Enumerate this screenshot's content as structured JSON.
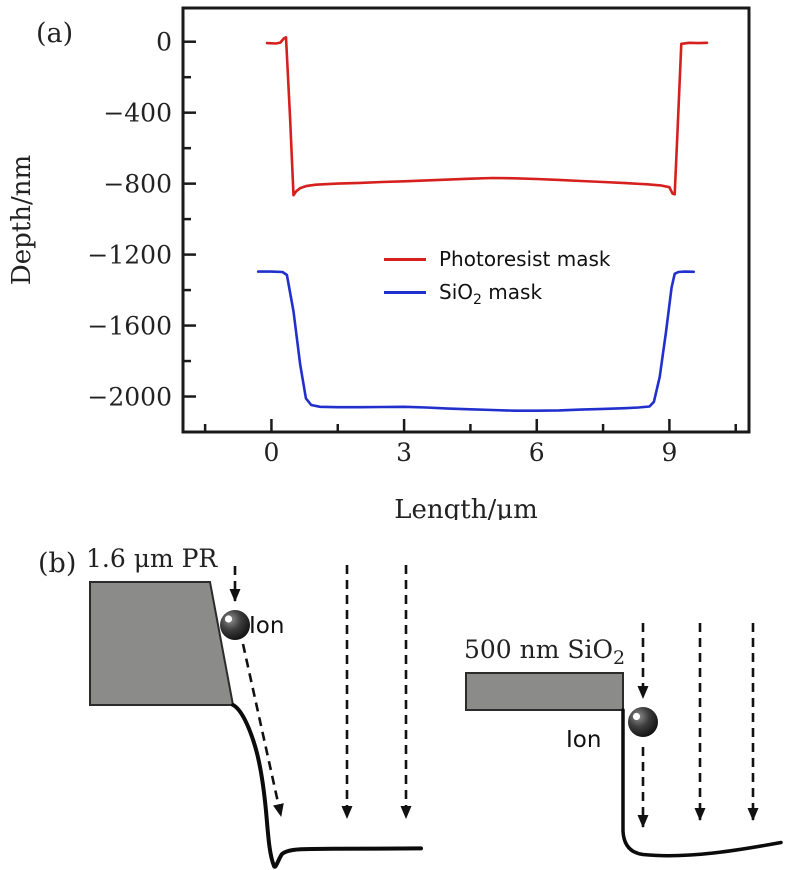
{
  "panel_a": {
    "tag": "(a)",
    "ylabel": "Depth/nm",
    "xlabel": "Length/μm",
    "legend": {
      "items": [
        {
          "label": "Photoresist mask",
          "color": "#d6201e"
        },
        {
          "label_pre": "SiO",
          "label_sub": "2",
          "label_post": " mask",
          "color": "#2130cc"
        }
      ]
    }
  },
  "chart_data": {
    "type": "line",
    "title": "",
    "xlabel": "Length/μm",
    "ylabel": "Depth/nm",
    "xlim": [
      -2.0,
      10.8
    ],
    "ylim": [
      190,
      -2200
    ],
    "grid": false,
    "legend_position": "center",
    "xticks": {
      "major": [
        0,
        3,
        6,
        9
      ],
      "minor": [
        -1.5,
        1.5,
        4.5,
        7.5,
        10.5
      ]
    },
    "yticks": {
      "major": [
        0,
        -400,
        -800,
        -1200,
        -1600,
        -2000
      ],
      "minor": [
        -200,
        -600,
        -1000,
        -1400,
        -1800
      ]
    },
    "series": [
      {
        "name": "Photoresist mask",
        "color": "#d6201e",
        "points": [
          [
            -0.1,
            -8
          ],
          [
            0.1,
            -10
          ],
          [
            0.2,
            -5
          ],
          [
            0.28,
            18
          ],
          [
            0.33,
            25
          ],
          [
            0.42,
            -420
          ],
          [
            0.5,
            -865
          ],
          [
            0.56,
            -843
          ],
          [
            0.65,
            -825
          ],
          [
            0.8,
            -813
          ],
          [
            1.0,
            -806
          ],
          [
            1.5,
            -800
          ],
          [
            2.0,
            -796
          ],
          [
            2.5,
            -791
          ],
          [
            3.0,
            -787
          ],
          [
            3.5,
            -782
          ],
          [
            4.0,
            -777
          ],
          [
            4.5,
            -772
          ],
          [
            5.0,
            -768
          ],
          [
            5.5,
            -770
          ],
          [
            6.0,
            -774
          ],
          [
            6.5,
            -779
          ],
          [
            7.0,
            -785
          ],
          [
            7.5,
            -791
          ],
          [
            8.0,
            -797
          ],
          [
            8.5,
            -804
          ],
          [
            8.8,
            -810
          ],
          [
            9.0,
            -820
          ],
          [
            9.07,
            -856
          ],
          [
            9.12,
            -860
          ],
          [
            9.18,
            -520
          ],
          [
            9.27,
            -12
          ],
          [
            9.45,
            -6
          ],
          [
            9.65,
            -8
          ],
          [
            9.85,
            -6
          ]
        ]
      },
      {
        "name": "SiO2 mask",
        "color": "#2130cc",
        "points": [
          [
            -0.3,
            -1296
          ],
          [
            0.0,
            -1296
          ],
          [
            0.25,
            -1298
          ],
          [
            0.35,
            -1315
          ],
          [
            0.5,
            -1520
          ],
          [
            0.65,
            -1820
          ],
          [
            0.78,
            -2010
          ],
          [
            0.9,
            -2048
          ],
          [
            1.1,
            -2058
          ],
          [
            1.5,
            -2060
          ],
          [
            2.0,
            -2060
          ],
          [
            2.5,
            -2059
          ],
          [
            3.0,
            -2058
          ],
          [
            3.5,
            -2062
          ],
          [
            4.0,
            -2068
          ],
          [
            4.5,
            -2072
          ],
          [
            5.0,
            -2076
          ],
          [
            5.5,
            -2080
          ],
          [
            6.0,
            -2080
          ],
          [
            6.5,
            -2078
          ],
          [
            7.0,
            -2074
          ],
          [
            7.5,
            -2070
          ],
          [
            8.0,
            -2066
          ],
          [
            8.3,
            -2062
          ],
          [
            8.55,
            -2056
          ],
          [
            8.65,
            -2030
          ],
          [
            8.78,
            -1890
          ],
          [
            8.92,
            -1640
          ],
          [
            9.05,
            -1385
          ],
          [
            9.12,
            -1308
          ],
          [
            9.2,
            -1298
          ],
          [
            9.35,
            -1296
          ],
          [
            9.55,
            -1297
          ]
        ]
      }
    ]
  },
  "panel_b": {
    "tag": "(b)",
    "left": {
      "mask_label": "1.6 μm PR",
      "ion_label": "Ion"
    },
    "right": {
      "mask_label_pre": "500 nm SiO",
      "mask_label_sub": "2",
      "ion_label": "Ion"
    }
  },
  "colors": {
    "axis": "#1a1a1a",
    "mask_fill": "#8b8b8a",
    "mask_stroke": "#2b2b2b",
    "profile": "#0b0b0b",
    "arrow": "#111111"
  }
}
